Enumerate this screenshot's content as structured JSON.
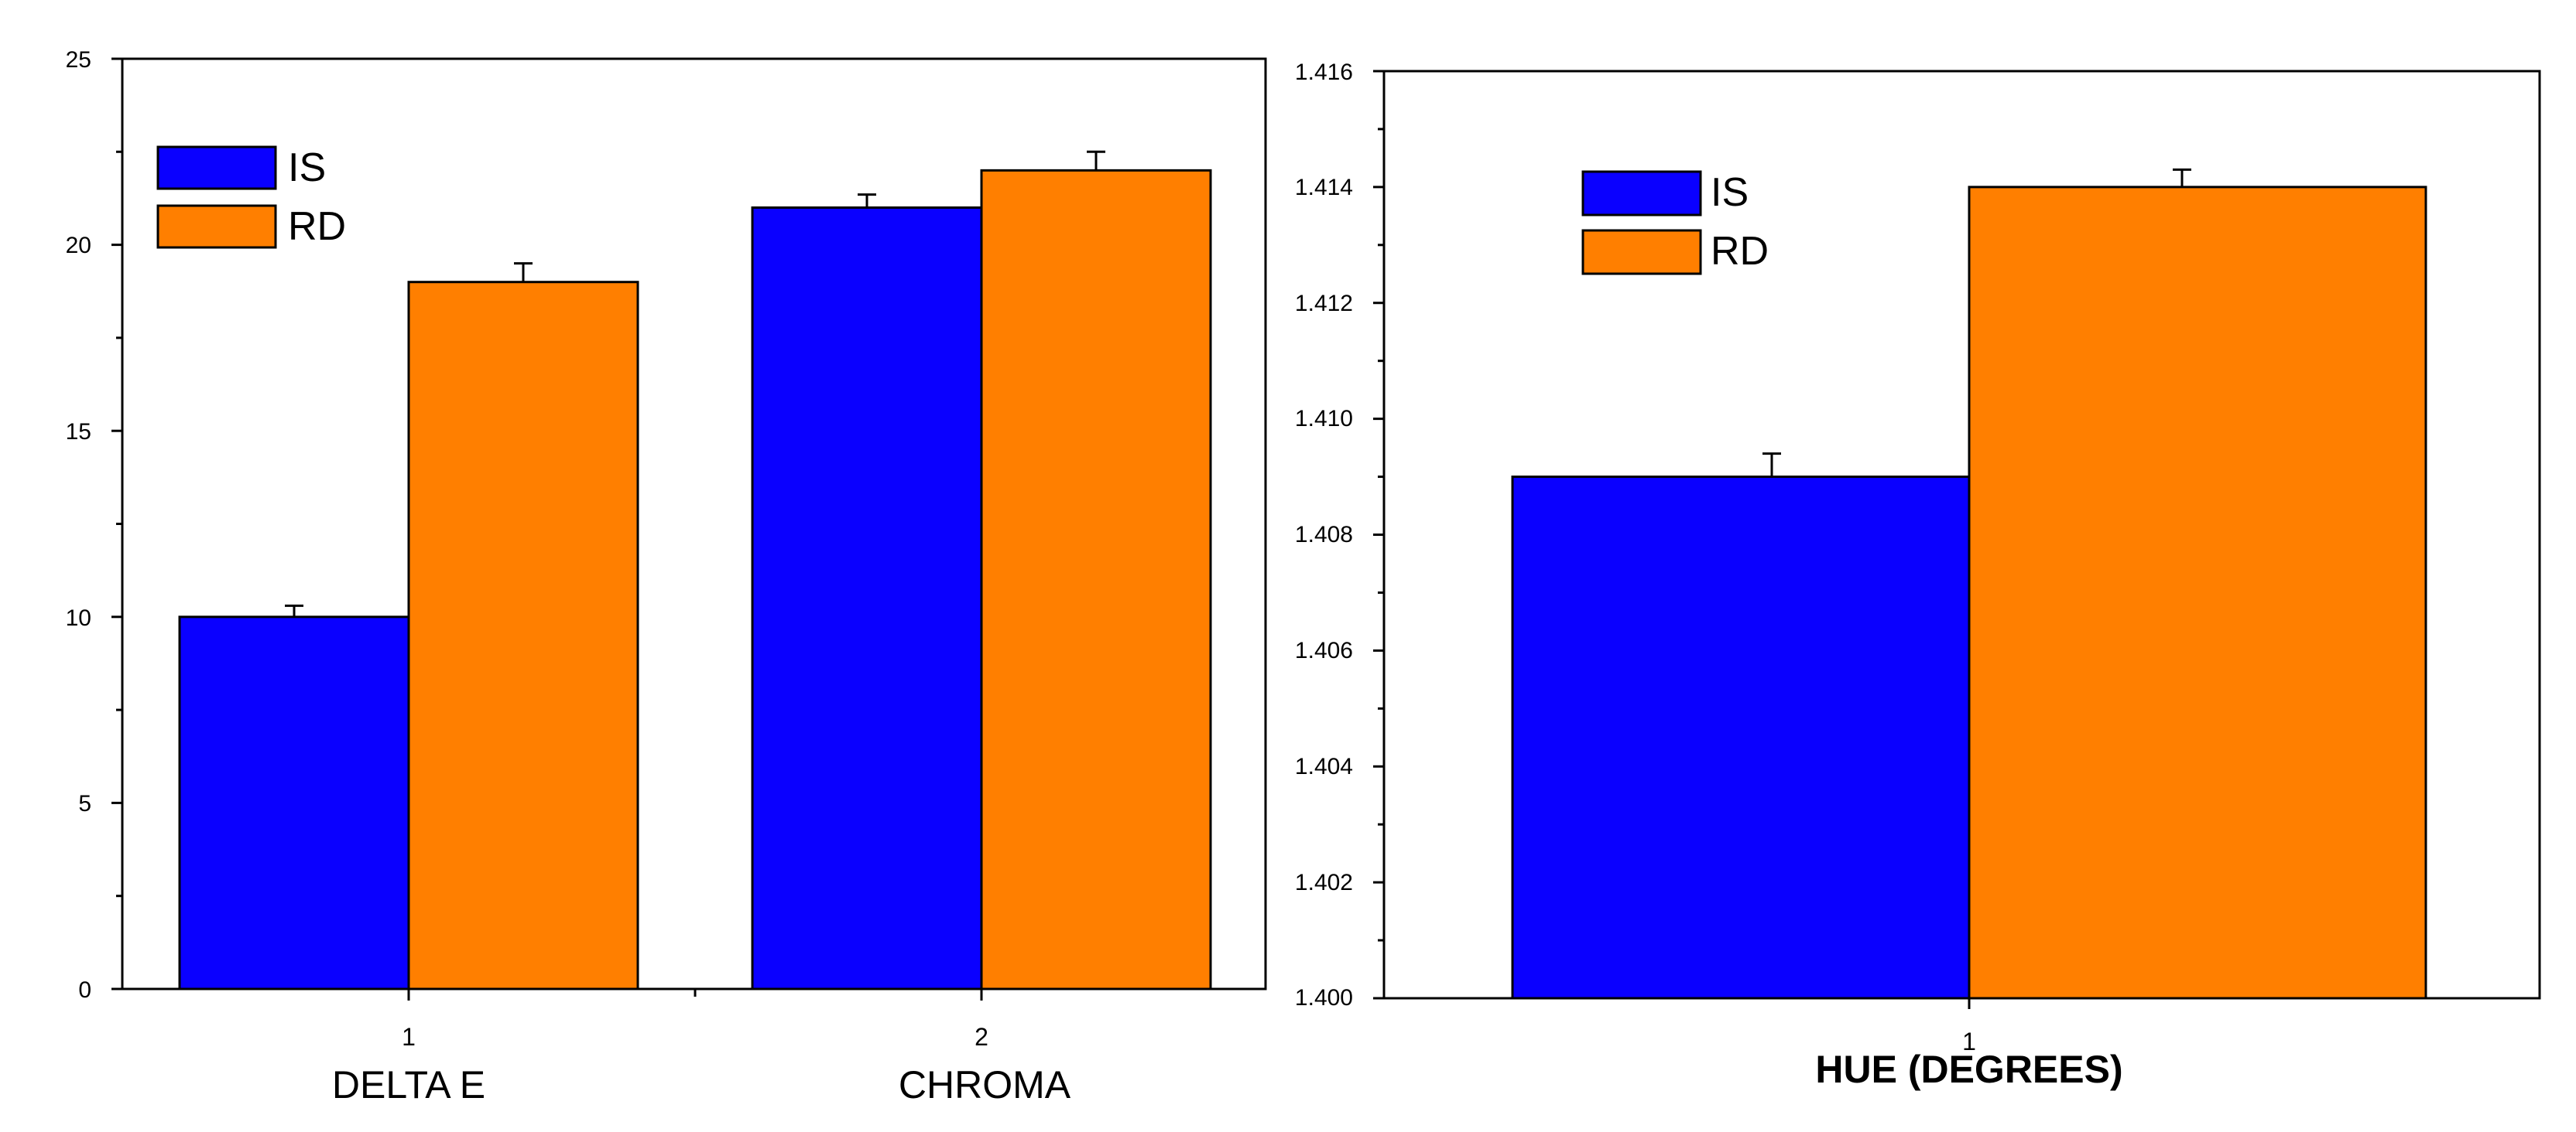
{
  "colors": {
    "IS": "#0a00ff",
    "RD": "#ff7f00",
    "axis": "#000000",
    "background": "#ffffff"
  },
  "chart_data": [
    {
      "type": "bar",
      "title": "",
      "categories": [
        "1",
        "2"
      ],
      "category_labels": [
        "DELTA E",
        "CHROMA"
      ],
      "series": [
        {
          "name": "IS",
          "values": [
            10,
            21
          ],
          "errors": [
            0.3,
            0.35
          ]
        },
        {
          "name": "RD",
          "values": [
            19,
            22
          ],
          "errors": [
            0.5,
            0.5
          ]
        }
      ],
      "xlabel": "",
      "ylabel": "",
      "ylim": [
        0,
        25
      ],
      "yticks": [
        "0",
        "5",
        "10",
        "15",
        "20",
        "25"
      ],
      "grid": false,
      "legend": "top-left"
    },
    {
      "type": "bar",
      "title": "",
      "categories": [
        "1"
      ],
      "series": [
        {
          "name": "IS",
          "values": [
            1.409
          ],
          "errors": [
            0.0004
          ]
        },
        {
          "name": "RD",
          "values": [
            1.414
          ],
          "errors": [
            0.0003
          ]
        }
      ],
      "xlabel": "HUE (DEGREES)",
      "ylabel": "",
      "ylim": [
        1.4,
        1.416
      ],
      "yticks": [
        "1.400",
        "1.402",
        "1.404",
        "1.406",
        "1.408",
        "1.410",
        "1.412",
        "1.414",
        "1.416"
      ],
      "grid": false,
      "legend": "top-left"
    }
  ]
}
